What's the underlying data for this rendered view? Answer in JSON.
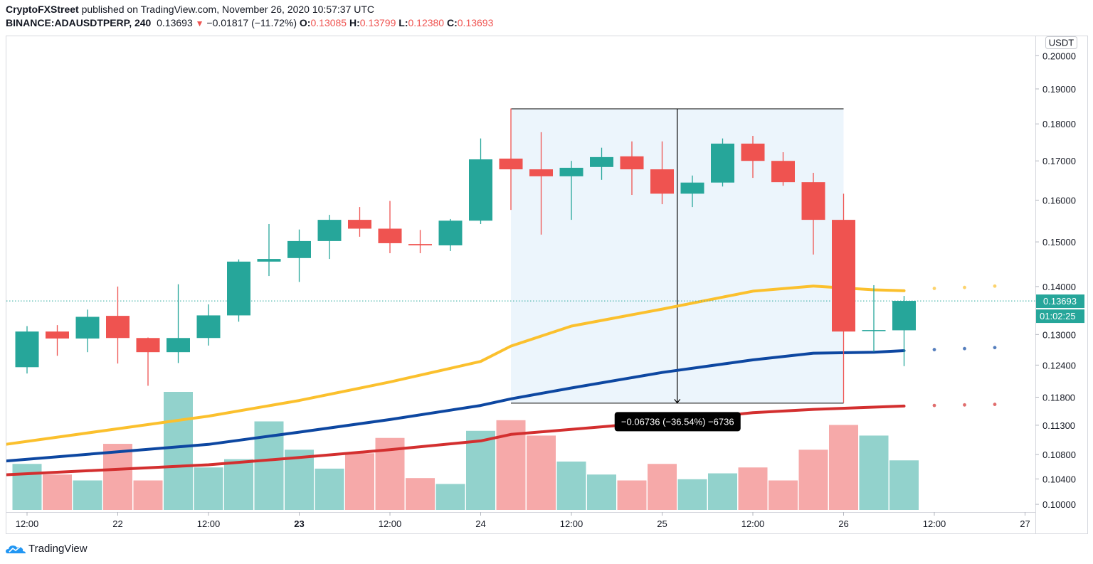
{
  "header": {
    "publisher": "CryptoFXStreet",
    "published_text": "published on TradingView.com, November 26, 2020 10:57:37 UTC",
    "symbol": "BINANCE:ADAUSDTPERP, 240",
    "last": "0.13693",
    "change": "−0.01817 (−11.72%)",
    "o_label": "O:",
    "o": "0.13085",
    "h_label": "H:",
    "h": "0.13799",
    "l_label": "L:",
    "l": "0.12380",
    "c_label": "C:",
    "c": "0.13693"
  },
  "price_axis": {
    "currency_badge": "USDT",
    "current_price_label": "0.13693",
    "countdown_label": "01:02:25"
  },
  "logo": {
    "text": "TradingView"
  },
  "colors": {
    "up": "#26a69a",
    "down": "#ef5350",
    "vol_up": "#92d2cc",
    "vol_down": "#f6a9a9",
    "ma_yellow": "#fbc02d",
    "ma_blue": "#0d47a1",
    "ma_red": "#d32f2f",
    "range_fill": "#e9f3fc"
  },
  "chart_data": {
    "type": "candlestick",
    "title": "",
    "y_scale": "log",
    "ylim": [
      0.0995,
      0.205
    ],
    "grid": false,
    "y_ticks": [
      "0.20000",
      "0.19000",
      "0.18000",
      "0.17000",
      "0.16000",
      "0.15000",
      "0.14000",
      "0.13000",
      "0.12400",
      "0.11800",
      "0.11300",
      "0.10800",
      "0.10400",
      "0.10000"
    ],
    "x_ticks": [
      {
        "t": "2020-11-21T12:00",
        "label": "12:00"
      },
      {
        "t": "2020-11-22T00:00",
        "label": "22"
      },
      {
        "t": "2020-11-22T12:00",
        "label": "12:00"
      },
      {
        "t": "2020-11-23T00:00",
        "label": "23"
      },
      {
        "t": "2020-11-23T12:00",
        "label": "12:00"
      },
      {
        "t": "2020-11-24T00:00",
        "label": "24"
      },
      {
        "t": "2020-11-24T12:00",
        "label": "12:00"
      },
      {
        "t": "2020-11-25T00:00",
        "label": "25"
      },
      {
        "t": "2020-11-25T12:00",
        "label": "12:00"
      },
      {
        "t": "2020-11-26T00:00",
        "label": "26"
      },
      {
        "t": "2020-11-26T12:00",
        "label": "12:00"
      },
      {
        "t": "2020-11-27T00:00",
        "label": "27"
      }
    ],
    "candles_columns": [
      "time",
      "open",
      "high",
      "low",
      "close",
      "volume_relative"
    ],
    "candles": [
      [
        "2020-11-21T12:00",
        0.1236,
        0.1317,
        0.1224,
        0.1306,
        39
      ],
      [
        "2020-11-21T16:00",
        0.1306,
        0.1319,
        0.1258,
        0.1292,
        30
      ],
      [
        "2020-11-21T20:00",
        0.1292,
        0.1351,
        0.1265,
        0.1336,
        25
      ],
      [
        "2020-11-22T00:00",
        0.1338,
        0.14,
        0.1243,
        0.1293,
        56
      ],
      [
        "2020-11-22T04:00",
        0.1293,
        0.1294,
        0.1201,
        0.1265,
        25
      ],
      [
        "2020-11-22T08:00",
        0.1265,
        0.1405,
        0.1244,
        0.1293,
        100
      ],
      [
        "2020-11-22T12:00",
        0.1293,
        0.1362,
        0.1278,
        0.1339,
        36
      ],
      [
        "2020-11-22T16:00",
        0.1339,
        0.146,
        0.1326,
        0.1455,
        43
      ],
      [
        "2020-11-22T20:00",
        0.1455,
        0.1542,
        0.1423,
        0.1461,
        75
      ],
      [
        "2020-11-23T00:00",
        0.1463,
        0.1529,
        0.141,
        0.1502,
        51
      ],
      [
        "2020-11-23T04:00",
        0.1502,
        0.1564,
        0.1461,
        0.1552,
        35
      ],
      [
        "2020-11-23T08:00",
        0.1552,
        0.1583,
        0.1512,
        0.1531,
        48
      ],
      [
        "2020-11-23T12:00",
        0.1531,
        0.1598,
        0.1474,
        0.1497,
        61
      ],
      [
        "2020-11-23T16:00",
        0.1495,
        0.1528,
        0.1474,
        0.1492,
        27
      ],
      [
        "2020-11-23T20:00",
        0.1492,
        0.1554,
        0.1479,
        0.155,
        22
      ],
      [
        "2020-11-24T00:00",
        0.155,
        0.176,
        0.1542,
        0.1704,
        67
      ],
      [
        "2020-11-24T04:00",
        0.1706,
        0.18434,
        0.1576,
        0.1678,
        76
      ],
      [
        "2020-11-24T08:00",
        0.1678,
        0.1777,
        0.1517,
        0.166,
        63
      ],
      [
        "2020-11-24T12:00",
        0.166,
        0.17,
        0.1552,
        0.1682,
        41
      ],
      [
        "2020-11-24T16:00",
        0.1684,
        0.1735,
        0.1651,
        0.171,
        30
      ],
      [
        "2020-11-24T20:00",
        0.1712,
        0.1752,
        0.1613,
        0.1678,
        25
      ],
      [
        "2020-11-25T00:00",
        0.1678,
        0.1752,
        0.159,
        0.1616,
        39
      ],
      [
        "2020-11-25T04:00",
        0.1616,
        0.1662,
        0.1583,
        0.1644,
        26
      ],
      [
        "2020-11-25T08:00",
        0.1644,
        0.176,
        0.1634,
        0.1746,
        31
      ],
      [
        "2020-11-25T12:00",
        0.1746,
        0.1767,
        0.1656,
        0.17,
        36
      ],
      [
        "2020-11-25T16:00",
        0.17,
        0.1723,
        0.1636,
        0.1645,
        25
      ],
      [
        "2020-11-25T20:00",
        0.1645,
        0.1669,
        0.1471,
        0.1552,
        51
      ],
      [
        "2020-11-26T00:00",
        0.1552,
        0.1616,
        0.11698,
        0.1306,
        72
      ],
      [
        "2020-11-26T04:00",
        0.1307,
        0.1403,
        0.1266,
        0.1309,
        63
      ],
      [
        "2020-11-26T08:00",
        0.13085,
        0.13799,
        0.1238,
        0.13693,
        42
      ]
    ],
    "moving_averages": [
      {
        "color_key": "ma_yellow",
        "points": [
          [
            "2020-11-21T08:00",
            0.1095
          ],
          [
            "2020-11-22T12:00",
            0.1146
          ],
          [
            "2020-11-23T00:00",
            0.1174
          ],
          [
            "2020-11-23T12:00",
            0.1208
          ],
          [
            "2020-11-24T00:00",
            0.1247
          ],
          [
            "2020-11-24T04:00",
            0.1277
          ],
          [
            "2020-11-24T12:00",
            0.1317
          ],
          [
            "2020-11-25T00:00",
            0.1352
          ],
          [
            "2020-11-25T12:00",
            0.139
          ],
          [
            "2020-11-25T20:00",
            0.1401
          ],
          [
            "2020-11-26T04:00",
            0.1393
          ],
          [
            "2020-11-26T08:00",
            0.1391
          ]
        ],
        "projection": [
          [
            "2020-11-26T12:00",
            0.1396
          ],
          [
            "2020-11-26T16:00",
            0.1398
          ],
          [
            "2020-11-26T20:00",
            0.1401
          ]
        ]
      },
      {
        "color_key": "ma_blue",
        "points": [
          [
            "2020-11-21T08:00",
            0.1068
          ],
          [
            "2020-11-22T12:00",
            0.1097
          ],
          [
            "2020-11-23T00:00",
            0.1118
          ],
          [
            "2020-11-23T12:00",
            0.114
          ],
          [
            "2020-11-24T00:00",
            0.1165
          ],
          [
            "2020-11-24T04:00",
            0.1177
          ],
          [
            "2020-11-24T12:00",
            0.1197
          ],
          [
            "2020-11-25T00:00",
            0.1226
          ],
          [
            "2020-11-25T12:00",
            0.125
          ],
          [
            "2020-11-25T20:00",
            0.1263
          ],
          [
            "2020-11-26T04:00",
            0.1265
          ],
          [
            "2020-11-26T08:00",
            0.1268
          ]
        ],
        "projection": [
          [
            "2020-11-26T12:00",
            0.127
          ],
          [
            "2020-11-26T16:00",
            0.1272
          ],
          [
            "2020-11-26T20:00",
            0.1274
          ]
        ]
      },
      {
        "color_key": "ma_red",
        "points": [
          [
            "2020-11-21T08:00",
            0.1046
          ],
          [
            "2020-11-22T12:00",
            0.1063
          ],
          [
            "2020-11-23T00:00",
            0.1075
          ],
          [
            "2020-11-23T12:00",
            0.1088
          ],
          [
            "2020-11-24T00:00",
            0.1103
          ],
          [
            "2020-11-24T04:00",
            0.1114
          ],
          [
            "2020-11-25T00:00",
            0.1136
          ],
          [
            "2020-11-25T12:00",
            0.1152
          ],
          [
            "2020-11-25T20:00",
            0.1158
          ],
          [
            "2020-11-26T08:00",
            0.1164
          ]
        ],
        "projection": [
          [
            "2020-11-26T12:00",
            0.1165
          ],
          [
            "2020-11-26T16:00",
            0.1166
          ],
          [
            "2020-11-26T20:00",
            0.1167
          ]
        ]
      }
    ],
    "price_range_measure": {
      "start": {
        "t": "2020-11-24T04:00",
        "price": 0.18434
      },
      "end": {
        "t": "2020-11-26T00:00",
        "price": 0.11698
      },
      "label": "−0.06736 (−36.54%) −6736"
    },
    "current_price": 0.13693
  }
}
